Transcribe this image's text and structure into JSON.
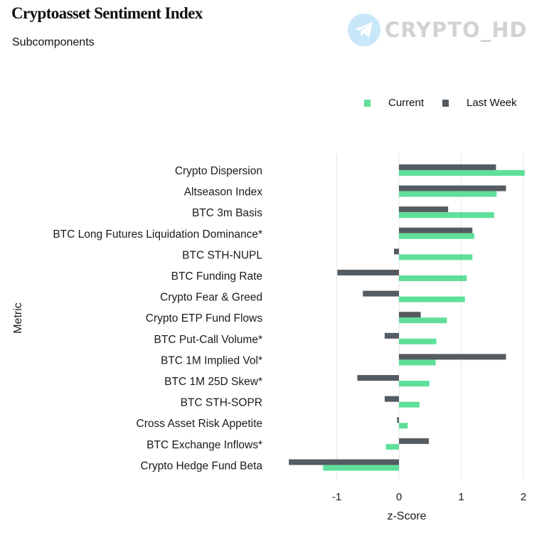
{
  "title": "Cryptoasset Sentiment Index",
  "subtitle": "Subcomponents",
  "watermark": {
    "text": "CRYPTO_HD",
    "icon": "telegram-icon"
  },
  "colors": {
    "current": "#5fdf9a",
    "last_week": "#555c61",
    "grid": "#e6e6e6"
  },
  "chart_data": {
    "type": "bar",
    "orientation": "horizontal",
    "title": "Cryptoasset Sentiment Index",
    "subtitle": "Subcomponents",
    "xlabel": "z-Score",
    "ylabel": "Metric",
    "xlim": [
      -1.9,
      2.1
    ],
    "xticks": [
      -1,
      0,
      1,
      2
    ],
    "xtick_labels": [
      "-1",
      "0",
      "1",
      "2"
    ],
    "grid": "vertical",
    "legend_position": "top-right",
    "categories": [
      "Crypto Dispersion",
      "Altseason Index",
      "BTC 3m Basis",
      "BTC Long Futures Liquidation Dominance*",
      "BTC STH-NUPL",
      "BTC Funding Rate",
      "Crypto Fear & Greed",
      "Crypto ETP Fund Flows",
      "BTC Put-Call Volume*",
      "BTC 1M Implied Vol*",
      "BTC 1M 25D Skew*",
      "BTC STH-SOPR",
      "Cross Asset Risk Appetite",
      "BTC Exchange Inflows*",
      "Crypto Hedge Fund Beta"
    ],
    "series": [
      {
        "name": "Current",
        "color": "#5fdf9a",
        "values": [
          2.02,
          1.57,
          1.53,
          1.21,
          1.18,
          1.09,
          1.06,
          0.77,
          0.6,
          0.59,
          0.49,
          0.33,
          0.14,
          -0.21,
          -1.22
        ]
      },
      {
        "name": "Last Week",
        "color": "#555c61",
        "values": [
          1.56,
          1.72,
          0.79,
          1.18,
          -0.08,
          -0.99,
          -0.58,
          0.35,
          -0.23,
          1.72,
          -0.67,
          -0.23,
          -0.03,
          0.48,
          -1.77
        ]
      }
    ]
  }
}
